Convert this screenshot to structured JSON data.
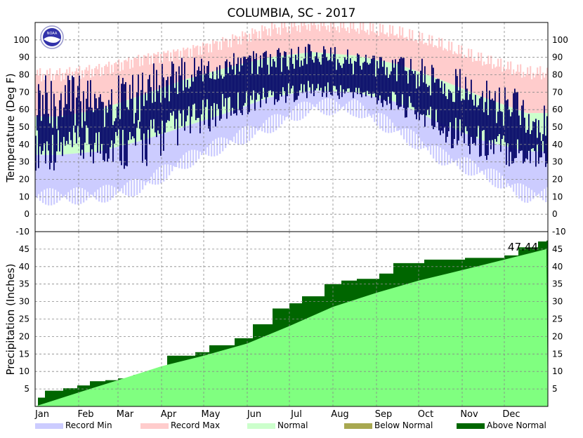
{
  "chart_data": [
    {
      "type": "area",
      "title": "COLUMBIA, SC - 2017",
      "ylabel": "Temperature (Deg F)",
      "ylim": [
        -10,
        110
      ],
      "yticks": [
        -10,
        0,
        10,
        20,
        30,
        40,
        50,
        60,
        70,
        80,
        90,
        100
      ],
      "months": [
        "Jan",
        "Feb",
        "Mar",
        "Apr",
        "May",
        "Jun",
        "Jul",
        "Aug",
        "Sep",
        "Oct",
        "Nov",
        "Dec"
      ],
      "grid": true,
      "monthly_bands": [
        {
          "month": "Jan",
          "record_min": 4,
          "normal_low": 34,
          "normal_high": 56,
          "record_max": 80,
          "actual_low_range": [
            25,
            50
          ],
          "actual_high_range": [
            45,
            80
          ]
        },
        {
          "month": "Feb",
          "record_min": 5,
          "normal_low": 36,
          "normal_high": 60,
          "record_max": 83,
          "actual_low_range": [
            28,
            52
          ],
          "actual_high_range": [
            50,
            80
          ]
        },
        {
          "month": "Mar",
          "record_min": 10,
          "normal_low": 42,
          "normal_high": 68,
          "record_max": 89,
          "actual_low_range": [
            24,
            55
          ],
          "actual_high_range": [
            50,
            85
          ]
        },
        {
          "month": "Apr",
          "record_min": 24,
          "normal_low": 50,
          "normal_high": 77,
          "record_max": 93,
          "actual_low_range": [
            40,
            62
          ],
          "actual_high_range": [
            70,
            90
          ]
        },
        {
          "month": "May",
          "record_min": 35,
          "normal_low": 58,
          "normal_high": 84,
          "record_max": 99,
          "actual_low_range": [
            52,
            70
          ],
          "actual_high_range": [
            78,
            92
          ]
        },
        {
          "month": "Jun",
          "record_min": 45,
          "normal_low": 67,
          "normal_high": 90,
          "record_max": 106,
          "actual_low_range": [
            62,
            74
          ],
          "actual_high_range": [
            80,
            95
          ]
        },
        {
          "month": "Jul",
          "record_min": 56,
          "normal_low": 71,
          "normal_high": 93,
          "record_max": 109,
          "actual_low_range": [
            66,
            77
          ],
          "actual_high_range": [
            84,
            98
          ]
        },
        {
          "month": "Aug",
          "record_min": 55,
          "normal_low": 70,
          "normal_high": 91,
          "record_max": 107,
          "actual_low_range": [
            66,
            74
          ],
          "actual_high_range": [
            80,
            95
          ]
        },
        {
          "month": "Sep",
          "record_min": 42,
          "normal_low": 64,
          "normal_high": 86,
          "record_max": 104,
          "actual_low_range": [
            58,
            70
          ],
          "actual_high_range": [
            75,
            92
          ]
        },
        {
          "month": "Oct",
          "record_min": 27,
          "normal_low": 52,
          "normal_high": 77,
          "record_max": 97,
          "actual_low_range": [
            40,
            62
          ],
          "actual_high_range": [
            65,
            88
          ]
        },
        {
          "month": "Nov",
          "record_min": 18,
          "normal_low": 42,
          "normal_high": 67,
          "record_max": 88,
          "actual_low_range": [
            30,
            50
          ],
          "actual_high_range": [
            55,
            78
          ]
        },
        {
          "month": "Dec",
          "record_min": 5,
          "normal_low": 36,
          "normal_high": 58,
          "record_max": 81,
          "actual_low_range": [
            25,
            45
          ],
          "actual_high_range": [
            42,
            70
          ]
        }
      ]
    },
    {
      "type": "area",
      "ylabel": "Precipitation (Inches)",
      "ylim": [
        0,
        50
      ],
      "yticks": [
        5,
        10,
        15,
        20,
        25,
        30,
        35,
        40,
        45
      ],
      "grid": true,
      "total_label": "47.44",
      "normal_cumulative": [
        {
          "x": "Jan 1",
          "y": 0
        },
        {
          "x": "Feb 1",
          "y": 4
        },
        {
          "x": "Mar 1",
          "y": 7.5
        },
        {
          "x": "Apr 1",
          "y": 11.5
        },
        {
          "x": "May 1",
          "y": 14.5
        },
        {
          "x": "Jun 1",
          "y": 18
        },
        {
          "x": "Jul 1",
          "y": 23
        },
        {
          "x": "Aug 1",
          "y": 28.5
        },
        {
          "x": "Sep 1",
          "y": 32.5
        },
        {
          "x": "Oct 1",
          "y": 36
        },
        {
          "x": "Nov 1",
          "y": 39
        },
        {
          "x": "Dec 1",
          "y": 42
        },
        {
          "x": "Dec 31",
          "y": 45
        }
      ],
      "actual_cumulative": [
        {
          "x": "Jan 1",
          "y": 0
        },
        {
          "x": "Jan 3",
          "y": 2.5
        },
        {
          "x": "Jan 8",
          "y": 4.5
        },
        {
          "x": "Jan 21",
          "y": 5.2
        },
        {
          "x": "Jan 31",
          "y": 6
        },
        {
          "x": "Feb 9",
          "y": 7.2
        },
        {
          "x": "Feb 20",
          "y": 7.5
        },
        {
          "x": "Mar 1",
          "y": 8
        },
        {
          "x": "Mar 12",
          "y": 9
        },
        {
          "x": "Mar 24",
          "y": 10
        },
        {
          "x": "Apr 5",
          "y": 14.5
        },
        {
          "x": "Apr 25",
          "y": 15.5
        },
        {
          "x": "May 5",
          "y": 17.5
        },
        {
          "x": "May 23",
          "y": 19.5
        },
        {
          "x": "Jun 5",
          "y": 23.5
        },
        {
          "x": "Jun 19",
          "y": 28
        },
        {
          "x": "Jul 1",
          "y": 29.5
        },
        {
          "x": "Jul 10",
          "y": 31.5
        },
        {
          "x": "Jul 26",
          "y": 35
        },
        {
          "x": "Aug 7",
          "y": 36
        },
        {
          "x": "Aug 18",
          "y": 36.5
        },
        {
          "x": "Sep 3",
          "y": 38
        },
        {
          "x": "Sep 13",
          "y": 41
        },
        {
          "x": "Oct 5",
          "y": 42
        },
        {
          "x": "Nov 3",
          "y": 42.5
        },
        {
          "x": "Dec 1",
          "y": 43.2
        },
        {
          "x": "Dec 11",
          "y": 45.5
        },
        {
          "x": "Dec 25",
          "y": 47.2
        },
        {
          "x": "Dec 31",
          "y": 47.44
        }
      ]
    }
  ],
  "legend": [
    {
      "label": "Record Min",
      "color": "#ccccff"
    },
    {
      "label": "Record Max",
      "color": "#ffcccc"
    },
    {
      "label": "Normal",
      "color": "#ccffcc"
    },
    {
      "label": "Below Normal",
      "color": "#a8a850"
    },
    {
      "label": "Above Normal",
      "color": "#006600"
    }
  ],
  "colors": {
    "record_min": "#ccccff",
    "record_max": "#ffcccc",
    "normal": "#ccffcc",
    "actual_temp": "#000066",
    "precip_normal": "#80ff80",
    "precip_above": "#006600",
    "grid": "#888888"
  },
  "logo": {
    "text": "NOAA"
  }
}
